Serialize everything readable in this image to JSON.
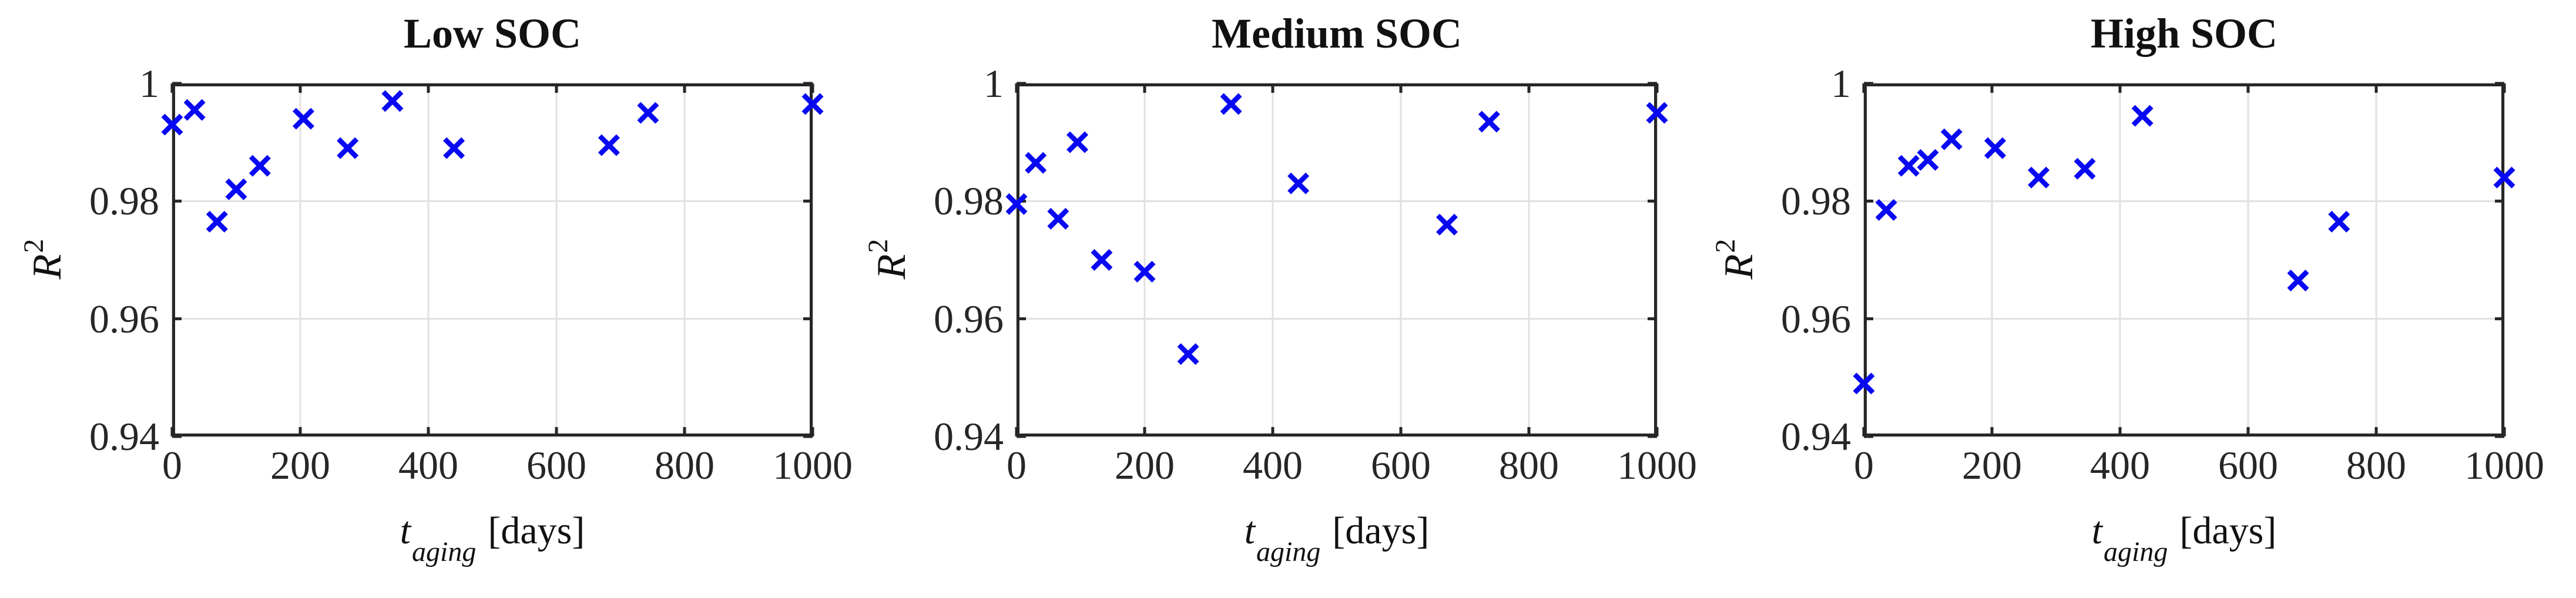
{
  "figure": {
    "background": "#ffffff",
    "axis_color": "#262626",
    "grid_color": "#e0e0e0",
    "marker_color": "#0808f2",
    "text_color": "#111111",
    "tick_label_color": "#262626"
  },
  "chart_data": [
    {
      "type": "scatter",
      "title": "Low SOC",
      "xlabel": {
        "variable": "t",
        "subscript": "aging",
        "unit": "[days]"
      },
      "ylabel": {
        "variable": "R",
        "exponent": "2"
      },
      "xlim": [
        0,
        1000
      ],
      "ylim": [
        0.94,
        1.0
      ],
      "xticks": [
        0,
        200,
        400,
        600,
        800,
        1000
      ],
      "xtick_labels": [
        "0",
        "200",
        "400",
        "600",
        "800",
        "1000"
      ],
      "yticks": [
        0.94,
        0.96,
        0.98,
        1.0
      ],
      "ytick_labels": [
        "0.94",
        "0.96",
        "0.98",
        "1"
      ],
      "grid": true,
      "legend": "none",
      "marker": "x",
      "x": [
        0,
        35,
        70,
        100,
        137,
        205,
        274,
        344,
        440,
        682,
        743,
        1000
      ],
      "y": [
        0.993,
        0.9955,
        0.9765,
        0.982,
        0.986,
        0.994,
        0.989,
        0.997,
        0.989,
        0.9895,
        0.995,
        0.9965
      ]
    },
    {
      "type": "scatter",
      "title": "Medium SOC",
      "xlabel": {
        "variable": "t",
        "subscript": "aging",
        "unit": "[days]"
      },
      "ylabel": {
        "variable": "R",
        "exponent": "2"
      },
      "xlim": [
        0,
        1000
      ],
      "ylim": [
        0.94,
        1.0
      ],
      "xticks": [
        0,
        200,
        400,
        600,
        800,
        1000
      ],
      "xtick_labels": [
        "0",
        "200",
        "400",
        "600",
        "800",
        "1000"
      ],
      "yticks": [
        0.94,
        0.96,
        0.98,
        1.0
      ],
      "ytick_labels": [
        "0.94",
        "0.96",
        "0.98",
        "1"
      ],
      "grid": true,
      "legend": "none",
      "marker": "x",
      "x": [
        0,
        30,
        65,
        95,
        133,
        200,
        268,
        335,
        440,
        672,
        738,
        1000
      ],
      "y": [
        0.9795,
        0.9865,
        0.977,
        0.99,
        0.97,
        0.968,
        0.954,
        0.9965,
        0.983,
        0.976,
        0.9935,
        0.995
      ]
    },
    {
      "type": "scatter",
      "title": "High SOC",
      "xlabel": {
        "variable": "t",
        "subscript": "aging",
        "unit": "[days]"
      },
      "ylabel": {
        "variable": "R",
        "exponent": "2"
      },
      "xlim": [
        0,
        1000
      ],
      "ylim": [
        0.94,
        1.0
      ],
      "xticks": [
        0,
        200,
        400,
        600,
        800,
        1000
      ],
      "xtick_labels": [
        "0",
        "200",
        "400",
        "600",
        "800",
        "1000"
      ],
      "yticks": [
        0.94,
        0.96,
        0.98,
        1.0
      ],
      "ytick_labels": [
        "0.94",
        "0.96",
        "0.98",
        "1"
      ],
      "grid": true,
      "legend": "none",
      "marker": "x",
      "x": [
        0,
        35,
        70,
        100,
        137,
        205,
        273,
        345,
        435,
        678,
        742,
        1000
      ],
      "y": [
        0.949,
        0.9785,
        0.986,
        0.987,
        0.9905,
        0.989,
        0.984,
        0.9855,
        0.9945,
        0.9665,
        0.9765,
        0.984
      ]
    }
  ]
}
